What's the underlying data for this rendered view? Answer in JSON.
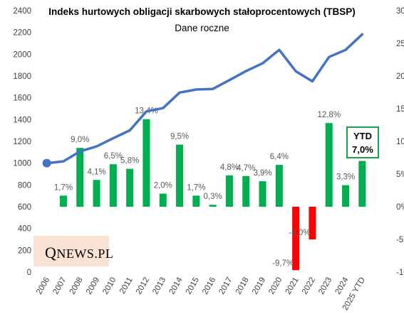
{
  "chart_data": {
    "type": "bar+line",
    "title": "Indeks hurtowych obligacji skarbowych stałoprocentowych (TBSP)",
    "subtitle": "Dane roczne",
    "categories": [
      "2006",
      "2007",
      "2008",
      "2009",
      "2010",
      "2011",
      "2012",
      "2013",
      "2014",
      "2015",
      "2016",
      "2017",
      "2018",
      "2019",
      "2020",
      "2021",
      "2022",
      "2023",
      "2024",
      "2025 YTD"
    ],
    "index_series": {
      "axis": "left",
      "values": [
        1000,
        1017,
        1108,
        1154,
        1229,
        1301,
        1475,
        1505,
        1648,
        1676,
        1681,
        1762,
        1845,
        1917,
        2040,
        1843,
        1751,
        1975,
        2040,
        2183
      ]
    },
    "return_series": {
      "axis": "right",
      "values": [
        null,
        1.7,
        9.0,
        4.1,
        6.5,
        5.8,
        13.4,
        2.0,
        9.5,
        1.7,
        0.3,
        4.8,
        4.7,
        3.9,
        6.4,
        -9.7,
        -5.0,
        12.8,
        3.3,
        7.0
      ],
      "labels": [
        "",
        "1,7%",
        "9,0%",
        "4,1%",
        "6,5%",
        "5,8%",
        "13,4%",
        "2,0%",
        "9,5%",
        "1,7%",
        "0,3%",
        "4,8%",
        "4,7%",
        "3,9%",
        "6,4%",
        "-9,7%",
        "-5,0%",
        "12,8%",
        "3,3%",
        ""
      ]
    },
    "y_left": {
      "min": 0,
      "max": 2400,
      "step": 200,
      "ticks": [
        "0",
        "200",
        "400",
        "600",
        "800",
        "1000",
        "1200",
        "1400",
        "1600",
        "1800",
        "2000",
        "2200",
        "2400"
      ]
    },
    "y_right": {
      "min": -10,
      "max": 30,
      "step": 5,
      "ticks": [
        "-10%",
        "-5%",
        "0%",
        "5%",
        "10%",
        "15%",
        "20%",
        "25%",
        "30%"
      ]
    },
    "grid": false,
    "legend": "none",
    "colors": {
      "line": "#4472c4",
      "positive": "#00b050",
      "negative": "#ff0000",
      "label": "#595959"
    },
    "ytd_box": {
      "line1": "YTD",
      "line2": "7,0%",
      "color": "#1e9e4a"
    }
  },
  "logo": {
    "q": "Q",
    "rest": "NEWS.PL"
  }
}
